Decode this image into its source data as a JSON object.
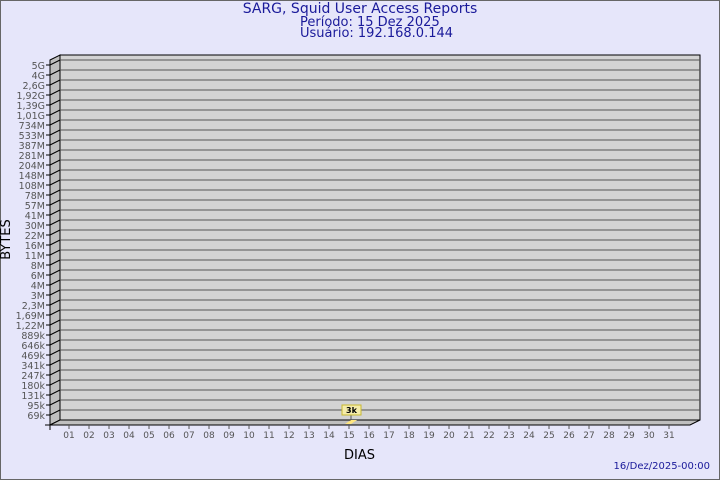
{
  "header": {
    "title": "SARG, Squid User Access Reports",
    "period": "Período: 15 Dez 2025",
    "user": "Usuário: 192.168.0.144"
  },
  "footer": {
    "timestamp": "16/Dez/2025-00:00"
  },
  "colors": {
    "background": "#e6e6fa",
    "plot": "#d3d3d3",
    "title": "#1a1a9a",
    "bar": "#ffe680"
  },
  "chart_data": {
    "type": "bar",
    "xlabel": "DIAS",
    "ylabel": "BYTES",
    "y_scale": "log",
    "y_ticks": [
      "5G",
      "4G",
      "2,6G",
      "1,92G",
      "1,39G",
      "1,01G",
      "734M",
      "533M",
      "387M",
      "281M",
      "204M",
      "148M",
      "108M",
      "78M",
      "57M",
      "41M",
      "30M",
      "22M",
      "16M",
      "11M",
      "8M",
      "6M",
      "4M",
      "3M",
      "2,3M",
      "1,69M",
      "1,22M",
      "889k",
      "646k",
      "469k",
      "341k",
      "247k",
      "180k",
      "131k",
      "95k",
      "69k"
    ],
    "categories": [
      "01",
      "02",
      "03",
      "04",
      "05",
      "06",
      "07",
      "08",
      "09",
      "10",
      "11",
      "12",
      "13",
      "14",
      "15",
      "16",
      "17",
      "18",
      "19",
      "20",
      "21",
      "22",
      "23",
      "24",
      "25",
      "26",
      "27",
      "28",
      "29",
      "30",
      "31"
    ],
    "bars": [
      {
        "day": "15",
        "value": 3000,
        "label": "3k"
      }
    ],
    "grid": true
  }
}
